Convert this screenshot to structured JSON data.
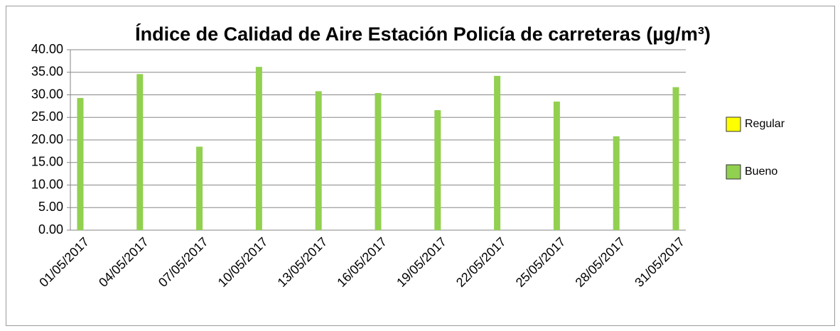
{
  "chart_data": {
    "type": "bar",
    "title": "Índice de Calidad de Aire Estación Policía de carreteras (µg/m³)",
    "categories": [
      "01/05/2017",
      null,
      null,
      "04/05/2017",
      null,
      null,
      "07/05/2017",
      null,
      null,
      "10/05/2017",
      null,
      null,
      "13/05/2017",
      null,
      null,
      "16/05/2017",
      null,
      null,
      "19/05/2017",
      null,
      null,
      "22/05/2017",
      null,
      null,
      "25/05/2017",
      null,
      null,
      "28/05/2017",
      null,
      null,
      "31/05/2017"
    ],
    "series": [
      {
        "name": "Regular",
        "color": "#ffff00",
        "values": [
          null,
          null,
          null,
          null,
          null,
          null,
          null,
          null,
          null,
          null,
          null,
          null,
          null,
          null,
          null,
          null,
          null,
          null,
          null,
          null,
          null,
          null,
          null,
          null,
          null,
          null,
          null,
          null,
          null,
          null,
          null
        ]
      },
      {
        "name": "Bueno",
        "color": "#92d050",
        "values": [
          29.3,
          null,
          null,
          34.6,
          null,
          null,
          18.5,
          null,
          null,
          36.2,
          null,
          null,
          30.8,
          null,
          null,
          30.4,
          null,
          null,
          26.6,
          null,
          null,
          34.2,
          null,
          null,
          28.5,
          null,
          null,
          20.8,
          null,
          null,
          31.7
        ]
      }
    ],
    "ylim": [
      0,
      40
    ],
    "yticks": [
      {
        "value": 0,
        "label": "0.00"
      },
      {
        "value": 5,
        "label": "5.00"
      },
      {
        "value": 10,
        "label": "10.00"
      },
      {
        "value": 15,
        "label": "15.00"
      },
      {
        "value": 20,
        "label": "20.00"
      },
      {
        "value": 25,
        "label": "25.00"
      },
      {
        "value": 30,
        "label": "30.00"
      },
      {
        "value": 35,
        "label": "35.00"
      },
      {
        "value": 40,
        "label": "40.00"
      }
    ],
    "grid": true
  }
}
